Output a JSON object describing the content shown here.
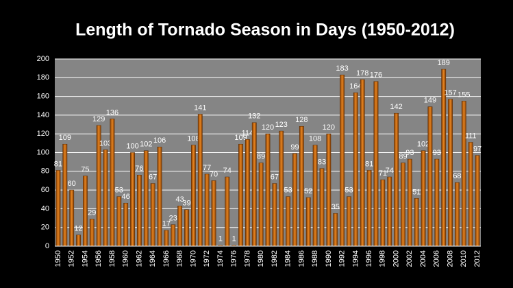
{
  "chart_data": {
    "type": "bar",
    "title": "Length of Tornado Season in Days (1950-2012)",
    "categories": [
      "1950",
      null,
      "1952",
      null,
      "1954",
      null,
      "1956",
      null,
      "1958",
      null,
      "1960",
      null,
      "1962",
      null,
      "1964",
      null,
      "1966",
      null,
      "1968",
      null,
      "1970",
      null,
      "1972",
      null,
      "1974",
      null,
      "1976",
      null,
      "1978",
      null,
      "1980",
      null,
      "1982",
      null,
      "1984",
      null,
      "1986",
      null,
      "1988",
      null,
      "1990",
      null,
      "1992",
      null,
      "1994",
      null,
      "1996",
      null,
      "1998",
      null,
      "2000",
      null,
      "2002",
      null,
      "2004",
      null,
      "2006",
      null,
      "2008",
      null,
      "2010",
      null,
      "2012"
    ],
    "values": [
      81,
      109,
      60,
      12,
      75,
      29,
      129,
      103,
      136,
      53,
      46,
      100,
      76,
      102,
      67,
      106,
      17,
      23,
      43,
      39,
      108,
      141,
      77,
      70,
      1,
      74,
      1,
      109,
      114,
      132,
      89,
      120,
      67,
      123,
      53,
      99,
      128,
      52,
      108,
      83,
      120,
      35,
      183,
      53,
      164,
      178,
      81,
      176,
      71,
      74,
      142,
      89,
      93,
      51,
      102,
      149,
      93,
      189,
      157,
      68,
      155,
      111,
      97
    ],
    "color": "#e8841f",
    "ylim": [
      0,
      200
    ],
    "yticks": [
      0,
      20,
      40,
      60,
      80,
      100,
      120,
      140,
      160,
      180,
      200
    ],
    "grid": true
  }
}
